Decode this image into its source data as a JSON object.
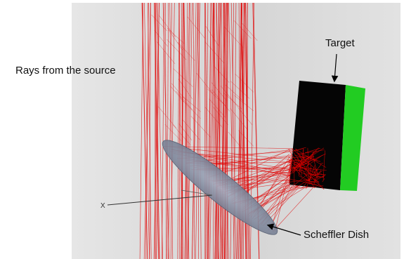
{
  "labels": {
    "rays": "Rays from the source",
    "target": "Target",
    "dish": "Scheffler Dish",
    "axis_x": "X"
  },
  "colors": {
    "background_panel": "#dcdcdc",
    "ray": "#e00000",
    "target_body": "#050505",
    "target_face": "#22cc22",
    "dish_fill": "#8a93a6",
    "axis": "#333333",
    "arrow": "#000000"
  }
}
